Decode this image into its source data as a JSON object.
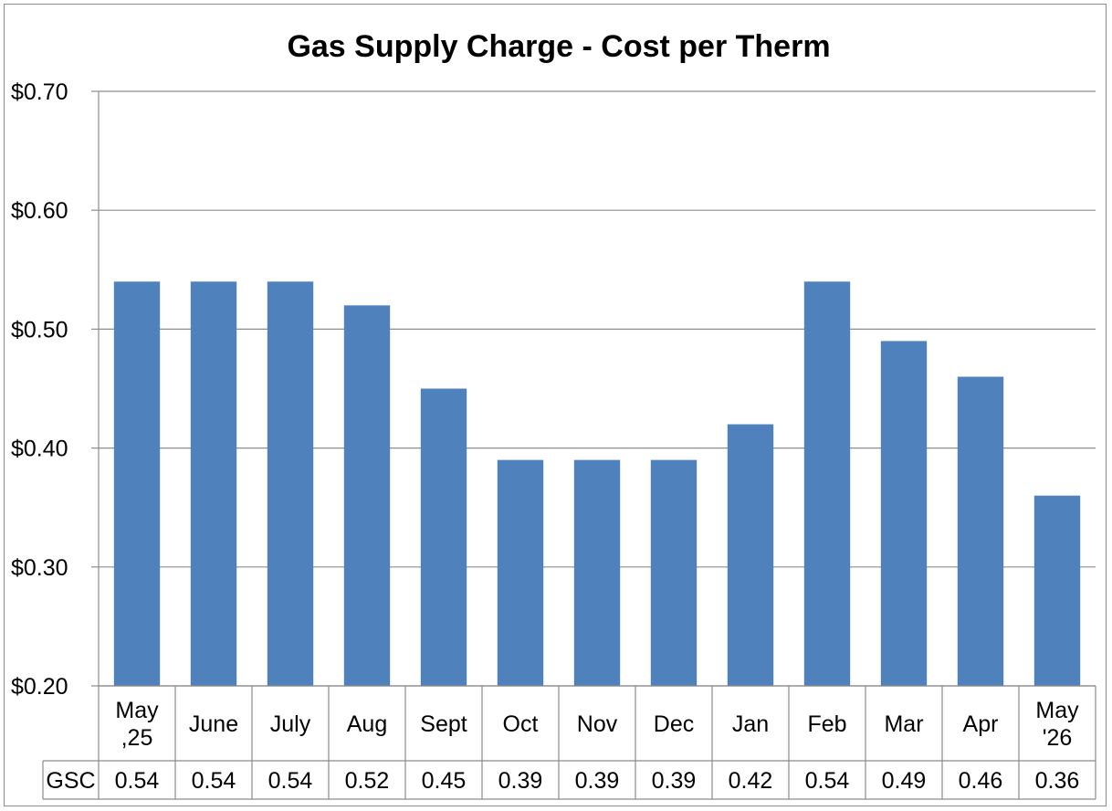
{
  "chart_data": {
    "type": "bar",
    "title": "Gas Supply Charge - Cost per Therm",
    "xlabel": "",
    "ylabel": "",
    "categories": [
      [
        "May",
        ",25"
      ],
      [
        "June"
      ],
      [
        "July"
      ],
      [
        "Aug"
      ],
      [
        "Sept"
      ],
      [
        "Oct"
      ],
      [
        "Nov"
      ],
      [
        "Dec"
      ],
      [
        "Jan"
      ],
      [
        "Feb"
      ],
      [
        "Mar"
      ],
      [
        "Apr"
      ],
      [
        "May",
        "'26"
      ]
    ],
    "series": [
      {
        "name": "GSC",
        "values": [
          0.54,
          0.54,
          0.54,
          0.52,
          0.45,
          0.39,
          0.39,
          0.39,
          0.42,
          0.54,
          0.49,
          0.46,
          0.36
        ],
        "color": "#4f81bd"
      }
    ],
    "table_values": [
      "0.54",
      "0.54",
      "0.54",
      "0.52",
      "0.45",
      "0.39",
      "0.39",
      "0.39",
      "0.42",
      "0.54",
      "0.49",
      "0.46",
      "0.36"
    ],
    "ylim": [
      0.2,
      0.7
    ],
    "yticks": [
      0.2,
      0.3,
      0.4,
      0.5,
      0.6,
      0.7
    ],
    "ytick_labels": [
      "$0.20",
      "$0.30",
      "$0.40",
      "$0.50",
      "$0.60",
      "$0.70"
    ],
    "grid": true,
    "legend": "data-table"
  }
}
